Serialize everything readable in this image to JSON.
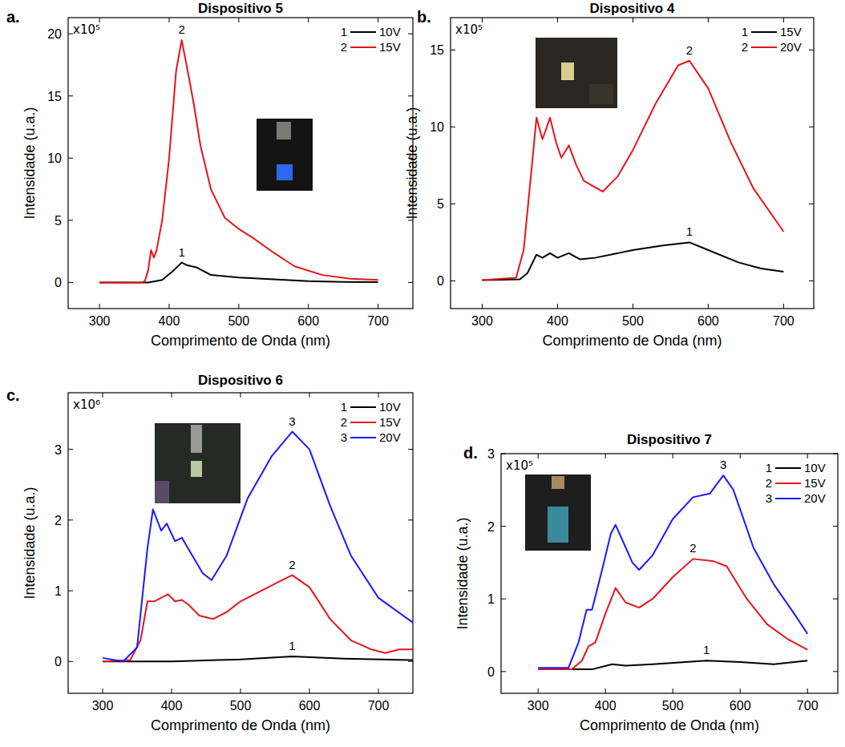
{
  "chart_data": [
    {
      "type": "line",
      "panel_label": "a.",
      "title": "Dispositivo 5",
      "xlabel": "Comprimento de Onda (nm)",
      "ylabel": "Intensidade (u.a.)",
      "multiplier": "x10⁵",
      "xlim": [
        255,
        750
      ],
      "ylim": [
        -2.1,
        21.3
      ],
      "xticks": [
        300,
        400,
        500,
        600,
        700
      ],
      "yticks": [
        0,
        5,
        10,
        15,
        20
      ],
      "grid": false,
      "legend": "upper right",
      "series": [
        {
          "name": "10V",
          "label": "1",
          "color": "#000000",
          "x": [
            300,
            370,
            390,
            405,
            418,
            425,
            440,
            460,
            500,
            550,
            600,
            650,
            700
          ],
          "values": [
            0,
            0,
            0.2,
            0.9,
            1.6,
            1.4,
            1.2,
            0.6,
            0.4,
            0.25,
            0.1,
            0.05,
            0.02
          ]
        },
        {
          "name": "15V",
          "label": "2",
          "color": "#e8141b",
          "x": [
            300,
            360,
            365,
            370,
            374,
            378,
            382,
            390,
            400,
            410,
            418,
            425,
            435,
            445,
            460,
            480,
            500,
            520,
            550,
            580,
            620,
            660,
            700
          ],
          "values": [
            0,
            0,
            0.1,
            1,
            2.6,
            2.0,
            2.6,
            5,
            10,
            17,
            19.5,
            17.5,
            14.5,
            11,
            7.5,
            5.2,
            4.3,
            3.6,
            2.4,
            1.3,
            0.6,
            0.3,
            0.2
          ]
        }
      ]
    },
    {
      "type": "line",
      "panel_label": "b.",
      "title": "Dispositivo 4",
      "xlabel": "Comprimento de Onda (nm)",
      "ylabel": "Intensidade (u.a.)",
      "multiplier": "x10⁵",
      "xlim": [
        258,
        740
      ],
      "ylim": [
        -1.8,
        17.1
      ],
      "xticks": [
        300,
        400,
        500,
        600,
        700
      ],
      "yticks": [
        0,
        5,
        10,
        15
      ],
      "grid": false,
      "legend": "upper right",
      "series": [
        {
          "name": "15V",
          "label": "1",
          "color": "#000000",
          "x": [
            300,
            350,
            360,
            372,
            380,
            390,
            400,
            415,
            430,
            450,
            480,
            500,
            540,
            575,
            600,
            640,
            670,
            700
          ],
          "values": [
            0.05,
            0.1,
            0.5,
            1.7,
            1.5,
            1.8,
            1.5,
            1.8,
            1.4,
            1.5,
            1.8,
            2.0,
            2.3,
            2.5,
            2.0,
            1.2,
            0.8,
            0.6
          ]
        },
        {
          "name": "20V",
          "label": "2",
          "color": "#e8141b",
          "x": [
            300,
            345,
            355,
            365,
            372,
            380,
            390,
            398,
            405,
            415,
            425,
            435,
            460,
            480,
            500,
            530,
            560,
            575,
            600,
            630,
            660,
            700
          ],
          "values": [
            0.05,
            0.2,
            2,
            7,
            10.6,
            9.2,
            10.6,
            9,
            8,
            8.8,
            7.5,
            6.5,
            5.8,
            6.8,
            8.5,
            11.5,
            14,
            14.3,
            12.5,
            9,
            6,
            3.2
          ]
        }
      ]
    },
    {
      "type": "line",
      "panel_label": "c.",
      "title": "Dispositivo 6",
      "xlabel": "Comprimento de Onda (nm)",
      "ylabel": "Intensidade (u.a.)",
      "multiplier": "x10⁶",
      "xlim": [
        250,
        750
      ],
      "ylim": [
        -0.45,
        3.8
      ],
      "xticks": [
        300,
        400,
        500,
        600,
        700
      ],
      "yticks": [
        0,
        1,
        2,
        3
      ],
      "grid": false,
      "legend": "upper right",
      "series": [
        {
          "name": "10V",
          "label": "1",
          "color": "#000000",
          "x": [
            300,
            400,
            500,
            575,
            650,
            750
          ],
          "values": [
            0,
            0,
            0.03,
            0.07,
            0.04,
            0.02
          ]
        },
        {
          "name": "15V",
          "label": "2",
          "color": "#e8141b",
          "x": [
            300,
            340,
            355,
            365,
            375,
            385,
            395,
            405,
            415,
            425,
            440,
            460,
            480,
            500,
            530,
            560,
            575,
            600,
            630,
            660,
            690,
            710,
            730,
            750
          ],
          "values": [
            0,
            0.02,
            0.3,
            0.85,
            0.85,
            0.9,
            0.95,
            0.85,
            0.87,
            0.8,
            0.65,
            0.6,
            0.7,
            0.85,
            1.0,
            1.15,
            1.22,
            1.05,
            0.6,
            0.3,
            0.17,
            0.12,
            0.17,
            0.17
          ]
        },
        {
          "name": "20V",
          "label": "3",
          "color": "#1a1aff",
          "x": [
            300,
            330,
            350,
            365,
            373,
            385,
            393,
            405,
            415,
            430,
            445,
            458,
            480,
            510,
            545,
            575,
            600,
            630,
            660,
            700,
            750
          ],
          "values": [
            0.05,
            0,
            0.2,
            1.6,
            2.15,
            1.85,
            1.95,
            1.7,
            1.75,
            1.5,
            1.25,
            1.15,
            1.5,
            2.3,
            2.9,
            3.25,
            3.0,
            2.2,
            1.5,
            0.9,
            0.55
          ]
        }
      ]
    },
    {
      "type": "line",
      "panel_label": "d.",
      "title": "Dispositivo 7",
      "xlabel": "Comprimento de Onda (nm)",
      "ylabel": "Intensidade (u.a.)",
      "multiplier": "x10⁵",
      "xlim": [
        245,
        745
      ],
      "ylim": [
        -0.3,
        3
      ],
      "xticks": [
        300,
        400,
        500,
        600,
        700
      ],
      "yticks": [
        0,
        1,
        2,
        3
      ],
      "grid": false,
      "legend": "upper right",
      "series": [
        {
          "name": "10V",
          "label": "1",
          "color": "#000000",
          "x": [
            300,
            380,
            410,
            430,
            470,
            550,
            600,
            650,
            700
          ],
          "values": [
            0.03,
            0.03,
            0.1,
            0.08,
            0.1,
            0.15,
            0.13,
            0.1,
            0.15
          ]
        },
        {
          "name": "15V",
          "label": "2",
          "color": "#e8141b",
          "x": [
            300,
            350,
            365,
            375,
            385,
            400,
            415,
            430,
            450,
            470,
            500,
            530,
            560,
            580,
            610,
            640,
            670,
            700
          ],
          "values": [
            0.03,
            0.03,
            0.15,
            0.35,
            0.4,
            0.8,
            1.15,
            0.95,
            0.88,
            1.0,
            1.3,
            1.55,
            1.52,
            1.45,
            1.0,
            0.65,
            0.45,
            0.3
          ]
        },
        {
          "name": "20V",
          "label": "3",
          "color": "#1a1aff",
          "x": [
            300,
            345,
            360,
            372,
            380,
            395,
            408,
            415,
            428,
            440,
            450,
            470,
            500,
            530,
            555,
            575,
            590,
            620,
            650,
            680,
            700
          ],
          "values": [
            0.05,
            0.05,
            0.4,
            0.85,
            0.85,
            1.4,
            1.9,
            2.02,
            1.75,
            1.5,
            1.4,
            1.6,
            2.1,
            2.4,
            2.45,
            2.7,
            2.5,
            1.7,
            1.2,
            0.8,
            0.52
          ]
        }
      ]
    }
  ]
}
